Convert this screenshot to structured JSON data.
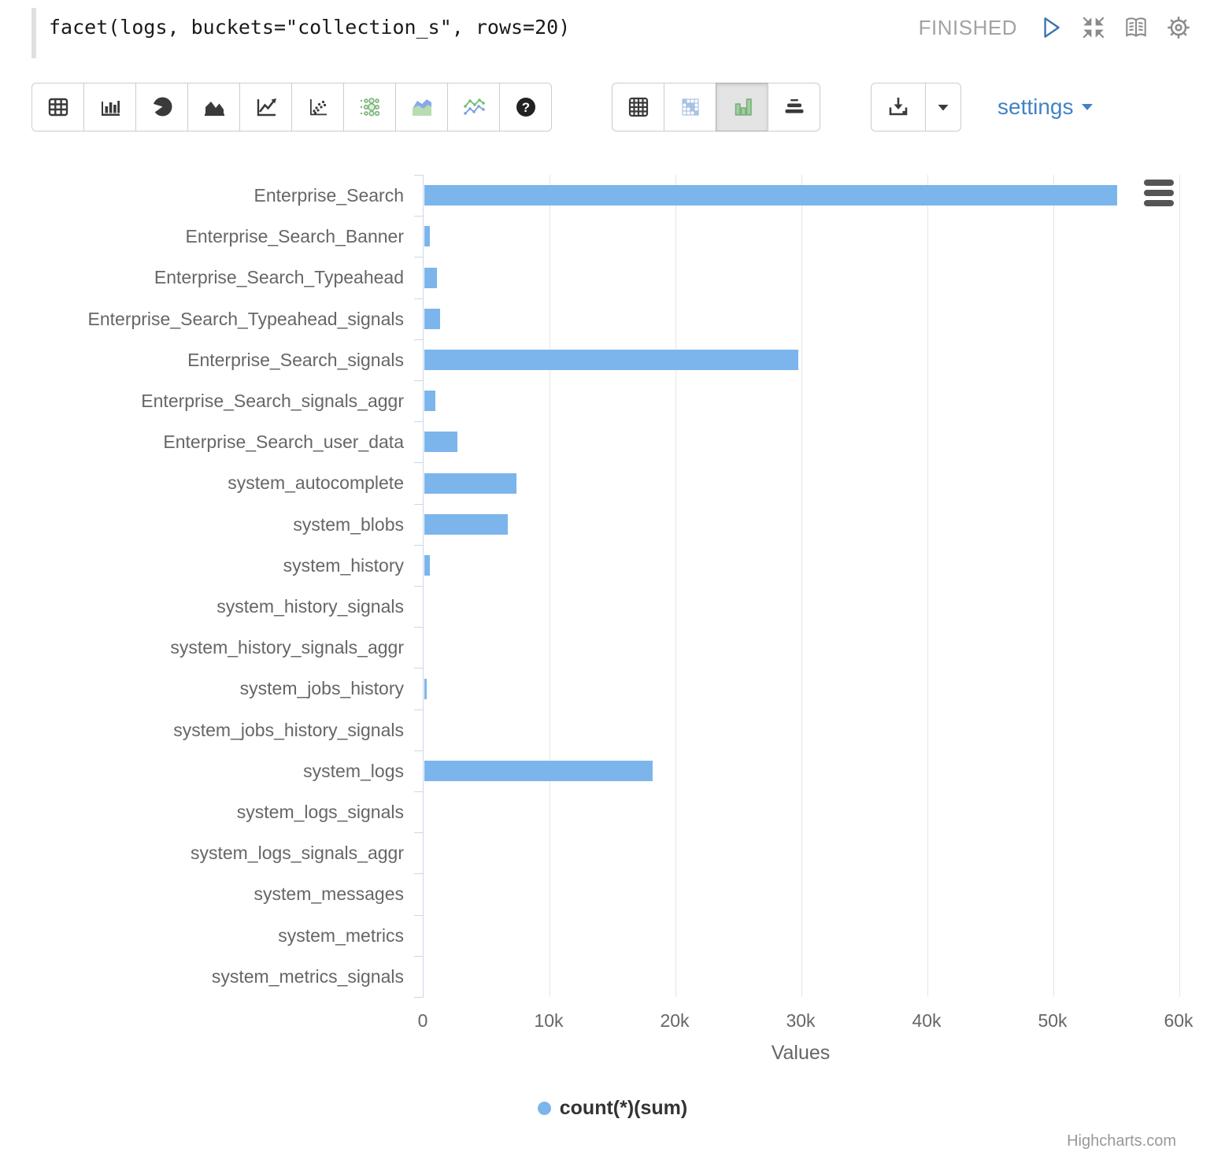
{
  "editor": {
    "code": "facet(logs, buckets=\"collection_s\", rows=20)",
    "status": "FINISHED"
  },
  "toolbar": {
    "settings_label": "settings",
    "selected_chart_type": "histogram",
    "icons": [
      "table-icon",
      "bar-chart-icon",
      "pie-chart-icon",
      "area-chart-icon",
      "line-chart-icon",
      "scatter-icon",
      "bubble-chart-icon",
      "stacked-area-icon",
      "multi-line-icon",
      "help-icon",
      "pivot-table-icon",
      "heatmap-icon",
      "histogram-icon",
      "horizontal-bars-icon",
      "download-icon",
      "caret-down-icon"
    ],
    "header_icons": [
      "play-icon",
      "collapse-icon",
      "book-icon",
      "gear-icon"
    ]
  },
  "chart_data": {
    "type": "bar",
    "orientation": "horizontal",
    "categories": [
      "Enterprise_Search",
      "Enterprise_Search_Banner",
      "Enterprise_Search_Typeahead",
      "Enterprise_Search_Typeahead_signals",
      "Enterprise_Search_signals",
      "Enterprise_Search_signals_aggr",
      "Enterprise_Search_user_data",
      "system_autocomplete",
      "system_blobs",
      "system_history",
      "system_history_signals",
      "system_history_signals_aggr",
      "system_jobs_history",
      "system_jobs_history_signals",
      "system_logs",
      "system_logs_signals",
      "system_logs_signals_aggr",
      "system_messages",
      "system_metrics",
      "system_metrics_signals"
    ],
    "values": [
      55000,
      440,
      1000,
      1250,
      29700,
      880,
      2630,
      7310,
      6630,
      450,
      0,
      0,
      190,
      0,
      18100,
      0,
      0,
      0,
      0,
      0
    ],
    "series_name": "count(*)(sum)",
    "legend_label": "count(*)(sum)",
    "legend_position": "bottom",
    "xlabel": "Values",
    "xlim": [
      0,
      60000
    ],
    "xticks": [
      {
        "value": 0,
        "label": "0"
      },
      {
        "value": 10000,
        "label": "10k"
      },
      {
        "value": 20000,
        "label": "20k"
      },
      {
        "value": 30000,
        "label": "30k"
      },
      {
        "value": 40000,
        "label": "40k"
      },
      {
        "value": 50000,
        "label": "50k"
      },
      {
        "value": 60000,
        "label": "60k"
      }
    ],
    "grid": true,
    "bar_color": "#7cb5ec",
    "axis_line_color": "#ccd6eb",
    "grid_color": "#e6e6e6",
    "credit": "Highcharts.com"
  },
  "colors": {
    "link_blue": "#4183c4",
    "status_gray": "#a3a3a3",
    "selected_icon_green": "#9fce9f",
    "icon_dark": "#3a3a3a",
    "icon_gray": "#8a8a8a"
  }
}
